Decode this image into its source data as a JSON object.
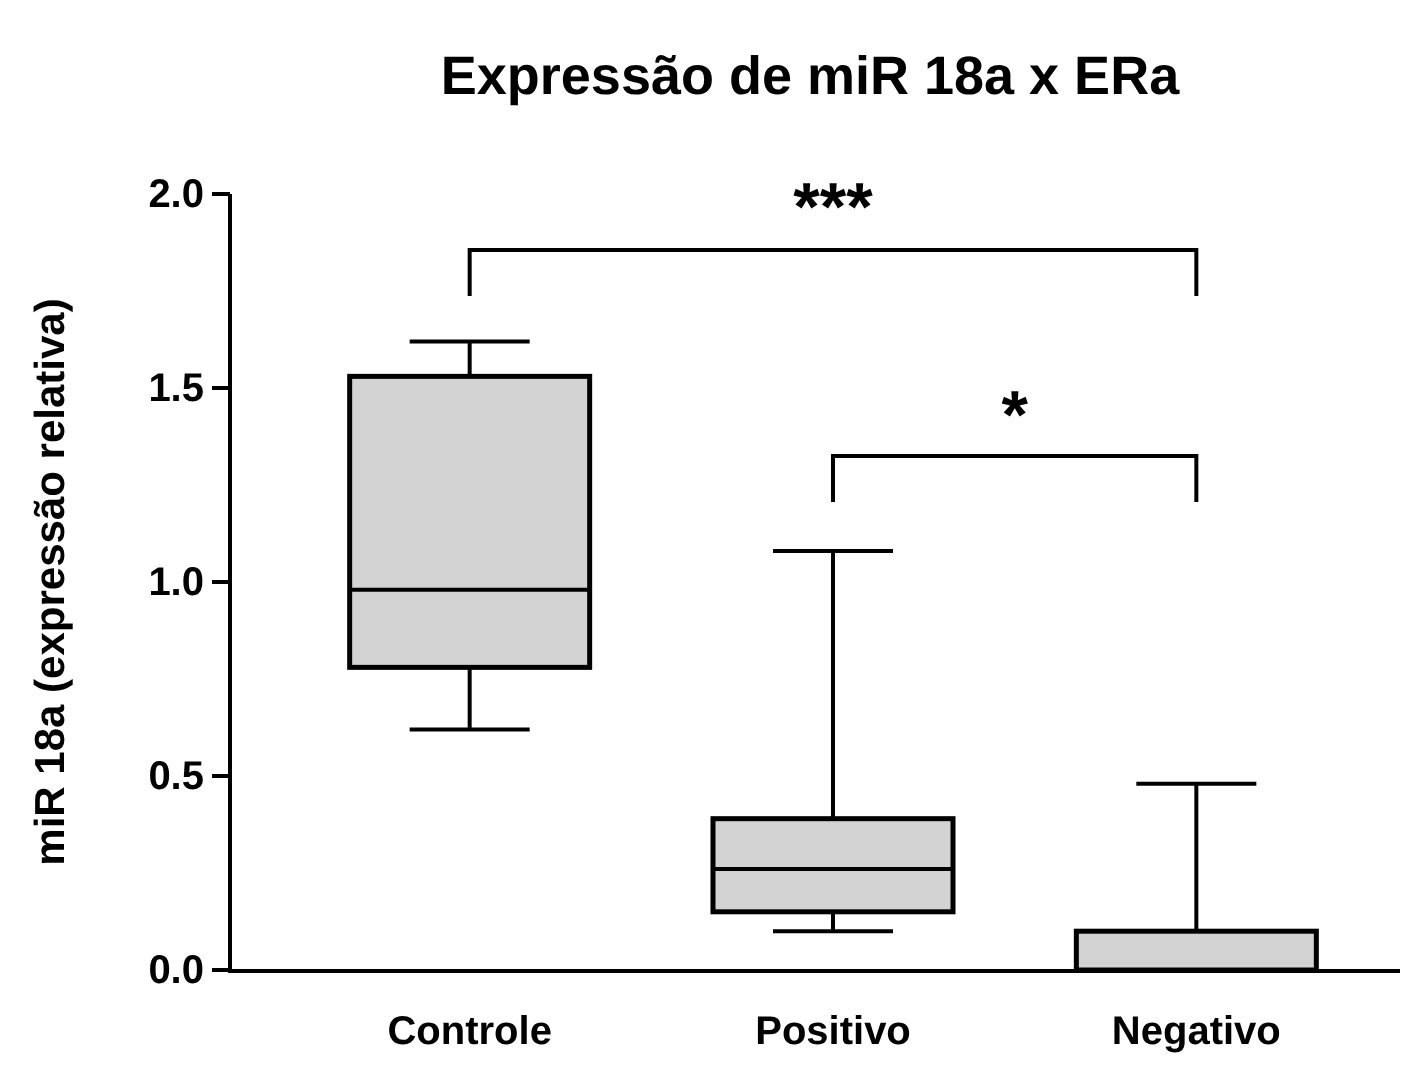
{
  "chart_data": {
    "type": "box",
    "title": "Expressão de miR 18a x ERa",
    "ylabel": "miR 18a (expressão relativa)",
    "categories": [
      "Controle",
      "Positivo",
      "Negativo"
    ],
    "boxes": [
      {
        "low": 0.62,
        "q1": 0.78,
        "median": 0.98,
        "q3": 1.53,
        "high": 1.62
      },
      {
        "low": 0.1,
        "q1": 0.15,
        "median": 0.26,
        "q3": 0.39,
        "high": 1.08
      },
      {
        "low": 0,
        "q1": 0,
        "median": 0,
        "q3": 0.1,
        "high": 0.48
      }
    ],
    "color": "#d3d3d3",
    "ylim": [
      0,
      2
    ],
    "yticks": [
      {
        "value": 0,
        "label": "0.0"
      },
      {
        "value": 0.5,
        "label": "0.5"
      },
      {
        "value": 1,
        "label": "1.0"
      },
      {
        "value": 1.5,
        "label": "1.5"
      },
      {
        "value": 2,
        "label": "2.0"
      }
    ],
    "annotations": [
      "***",
      "*"
    ]
  }
}
